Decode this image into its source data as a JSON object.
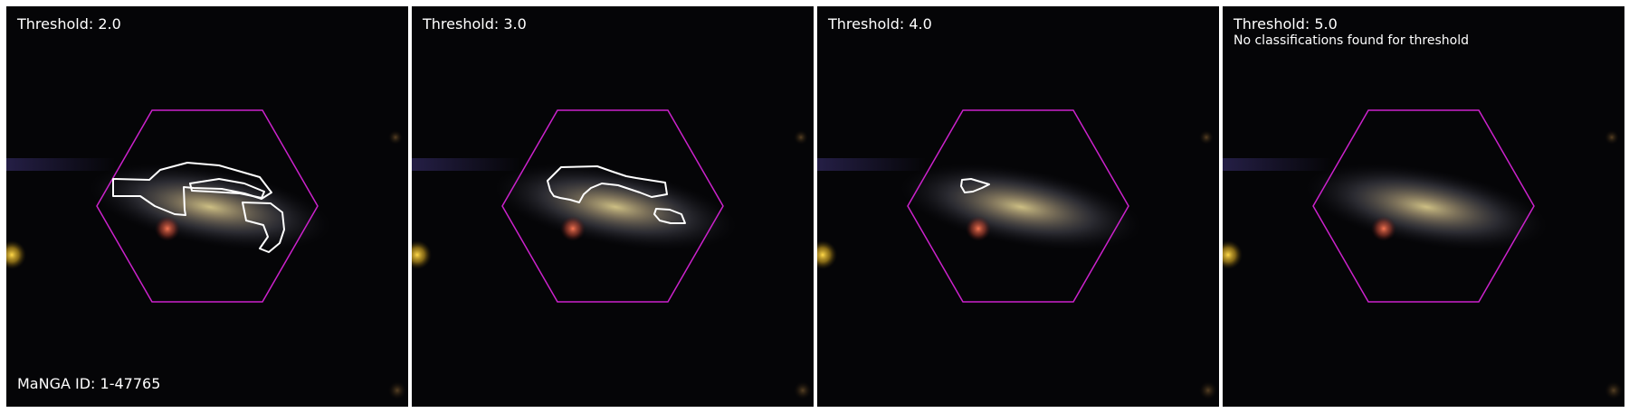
{
  "manga_id": "MaNGA ID: 1-47765",
  "colors": {
    "hexagon": "#cc22cc",
    "contour": "#ffffff",
    "background": "#050507"
  },
  "panels": [
    {
      "title": "Threshold: 2.0",
      "note": ""
    },
    {
      "title": "Threshold: 3.0",
      "note": ""
    },
    {
      "title": "Threshold: 4.0",
      "note": ""
    },
    {
      "title": "Threshold: 5.0",
      "note": "No classifications found for threshold"
    }
  ]
}
